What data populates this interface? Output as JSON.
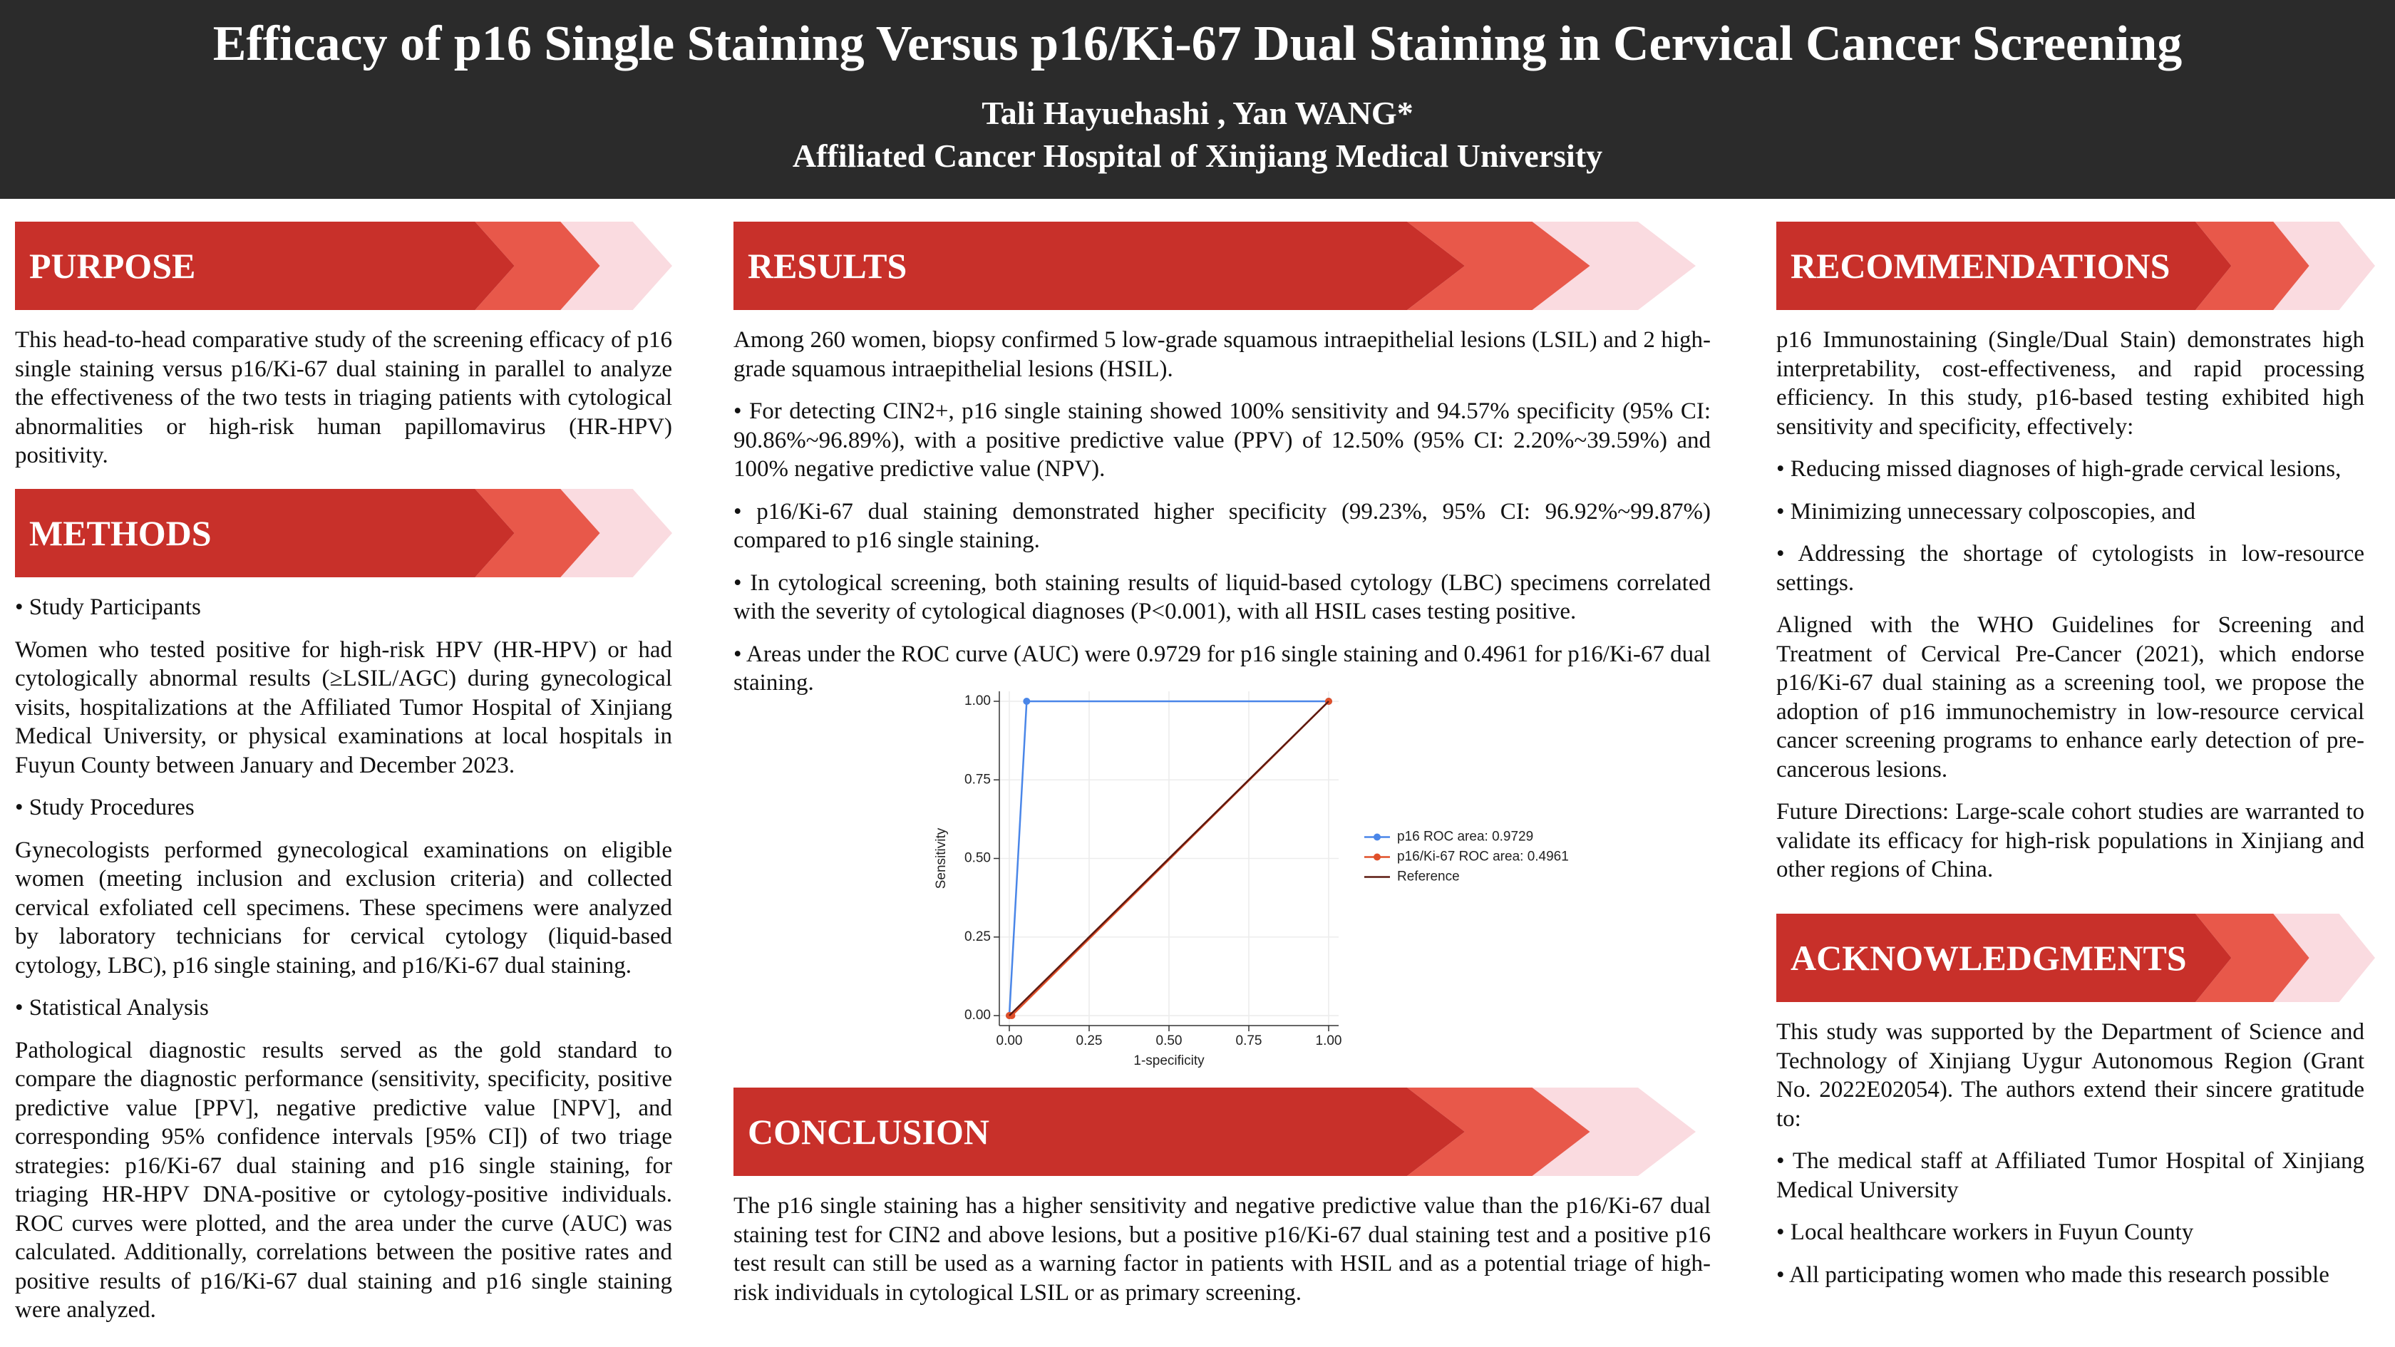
{
  "header": {
    "title": "Efficacy of p16 Single Staining Versus p16/Ki-67 Dual Staining in Cervical Cancer Screening",
    "authors": "Tali Hayuehashi , Yan WANG*",
    "affiliation": "Affiliated Cancer Hospital of Xinjiang Medical University"
  },
  "purpose": {
    "heading": "PURPOSE",
    "paragraphs": [
      "This head-to-head comparative study of the screening efficacy of p16 single staining versus p16/Ki-67 dual staining in parallel to analyze the effectiveness of the two tests in triaging patients with cytological abnormalities or high-risk human papillomavirus (HR-HPV) positivity."
    ]
  },
  "methods": {
    "heading": "METHODS",
    "paragraphs": [
      "• Study Participants",
      "Women who tested positive for high-risk HPV (HR-HPV) or had cytologically abnormal results (≥LSIL/AGC) during gynecological visits, hospitalizations at the Affiliated Tumor Hospital of Xinjiang Medical University, or physical examinations at local hospitals in Fuyun County between January and December 2023.",
      "• Study Procedures",
      "Gynecologists performed gynecological examinations on eligible women (meeting inclusion and exclusion criteria) and collected cervical exfoliated cell specimens. These specimens were analyzed by laboratory technicians for cervical cytology (liquid-based cytology, LBC), p16 single staining, and p16/Ki-67 dual staining.",
      "• Statistical Analysis",
      "Pathological diagnostic results served as the gold standard to compare the diagnostic performance (sensitivity, specificity, positive predictive value [PPV], negative predictive value [NPV], and corresponding 95% confidence intervals [95% CI]) of two triage strategies: p16/Ki-67 dual staining and p16 single staining, for triaging HR-HPV DNA-positive or cytology-positive individuals. ROC curves were plotted, and the area under the curve (AUC) was calculated. Additionally, correlations between the positive rates and positive results of p16/Ki-67 dual staining and p16 single staining were analyzed."
    ]
  },
  "results": {
    "heading": "RESULTS",
    "paragraphs": [
      "Among 260 women, biopsy confirmed 5 low-grade squamous intraepithelial lesions (LSIL) and 2 high-grade squamous intraepithelial lesions (HSIL).",
      "• For detecting CIN2+, p16 single staining showed 100% sensitivity and 94.57% specificity (95% CI: 90.86%~96.89%), with a positive predictive value (PPV) of 12.50% (95% CI: 2.20%~39.59%) and 100% negative predictive value (NPV).",
      "• p16/Ki-67 dual staining demonstrated higher specificity (99.23%, 95% CI: 96.92%~99.87%) compared to p16 single staining.",
      "• In cytological screening, both staining results of liquid-based cytology (LBC) specimens correlated with the severity of cytological diagnoses (P<0.001), with all HSIL cases testing positive.",
      "• Areas under the ROC curve (AUC) were 0.9729 for p16 single staining and 0.4961 for p16/Ki-67 dual staining."
    ]
  },
  "conclusion": {
    "heading": "CONCLUSION",
    "paragraphs": [
      "The p16 single staining has a higher sensitivity and negative predictive value than the p16/Ki-67 dual staining test for CIN2 and above lesions, but a positive p16/Ki-67 dual staining test and a positive p16 test result can still be used as a warning factor in patients with HSIL and as a potential triage of high-risk individuals in cytological LSIL or as primary screening."
    ]
  },
  "recommendations": {
    "heading": "RECOMMENDATIONS",
    "paragraphs": [
      "p16 Immunostaining (Single/Dual Stain) demonstrates high interpretability, cost-effectiveness, and rapid processing efficiency. In this study, p16-based testing exhibited high sensitivity and specificity, effectively:",
      "• Reducing missed diagnoses of high-grade cervical lesions,",
      "• Minimizing unnecessary colposcopies, and",
      "• Addressing the shortage of cytologists in low-resource settings.",
      "Aligned with the WHO Guidelines for Screening and Treatment of Cervical Pre-Cancer (2021), which endorse p16/Ki-67 dual staining as a screening tool, we propose the adoption of p16 immunochemistry in low-resource cervical cancer screening programs to enhance early detection of pre-cancerous lesions.",
      "Future Directions: Large-scale cohort studies are warranted to validate its efficacy for high-risk populations in Xinjiang and other regions of China."
    ]
  },
  "acknowledgments": {
    "heading": "ACKNOWLEDGMENTS",
    "paragraphs": [
      "This study was supported by the Department of Science and Technology of Xinjiang Uygur Autonomous Region (Grant No. 2022E02054). The authors extend their sincere gratitude to:",
      "• The medical staff at Affiliated Tumor Hospital of Xinjiang Medical University",
      "• Local healthcare workers in Fuyun County",
      "• All participating women who made this research possible"
    ]
  },
  "chart_data": {
    "type": "line",
    "xlabel": "1-specificity",
    "ylabel": "Sensitivity",
    "xlim": [
      0,
      1
    ],
    "ylim": [
      0,
      1
    ],
    "xticks": [
      {
        "value": 0,
        "label": "0.00"
      },
      {
        "value": 0.25,
        "label": "0.25"
      },
      {
        "value": 0.5,
        "label": "0.50"
      },
      {
        "value": 0.75,
        "label": "0.75"
      },
      {
        "value": 1,
        "label": "1.00"
      }
    ],
    "yticks": [
      {
        "value": 0,
        "label": "0.00"
      },
      {
        "value": 0.25,
        "label": "0.25"
      },
      {
        "value": 0.5,
        "label": "0.50"
      },
      {
        "value": 0.75,
        "label": "0.75"
      },
      {
        "value": 1,
        "label": "1.00"
      }
    ],
    "grid": true,
    "legend": "right",
    "series": [
      {
        "name": "p16 ROC area: 0.9729",
        "color": "#4a86e8",
        "markers": true,
        "x": [
          0,
          0.0543,
          1
        ],
        "values": [
          0,
          1,
          1
        ]
      },
      {
        "name": "p16/Ki-67 ROC area: 0.4961",
        "color": "#e0502a",
        "markers": true,
        "x": [
          0,
          0.0077,
          1
        ],
        "values": [
          0,
          0,
          1
        ]
      },
      {
        "name": "Reference",
        "color": "#5c1a10",
        "markers": false,
        "x": [
          0,
          1
        ],
        "values": [
          0,
          1
        ]
      }
    ]
  }
}
